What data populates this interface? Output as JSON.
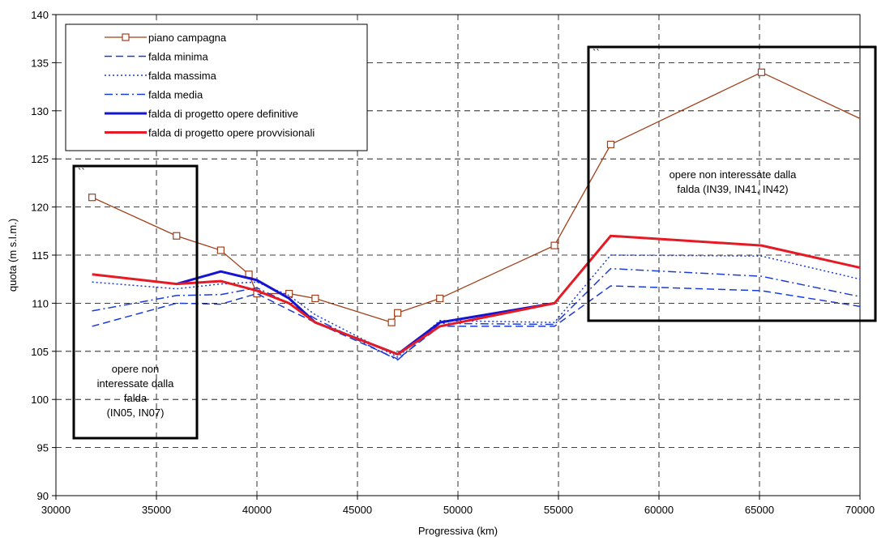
{
  "chart_data": {
    "type": "line",
    "xlabel": "Progressiva (km)",
    "ylabel": "quota (m s.l.m.)",
    "xlim": [
      30000,
      70000
    ],
    "ylim": [
      90,
      140
    ],
    "x_ticks": [
      30000,
      35000,
      40000,
      45000,
      50000,
      55000,
      60000,
      65000,
      70000
    ],
    "y_ticks": [
      90,
      95,
      100,
      105,
      110,
      115,
      120,
      125,
      130,
      135,
      140
    ],
    "grid": true,
    "legend_position": "top-left",
    "series": [
      {
        "name": "piano campagna",
        "color": "#a0401a",
        "style": "solid-square-markers",
        "x": [
          31800,
          36000,
          38200,
          39600,
          40000,
          41600,
          42900,
          46700,
          47000,
          49100,
          54800,
          57600,
          65100,
          70200
        ],
        "y": [
          121.0,
          117.0,
          115.5,
          113.0,
          111.0,
          111.0,
          110.5,
          108.0,
          109.0,
          110.5,
          116.0,
          126.5,
          134.0,
          129.0
        ]
      },
      {
        "name": "falda minima",
        "color": "#1a3cd6",
        "style": "dash",
        "x": [
          31800,
          36000,
          38200,
          40000,
          41600,
          42900,
          47000,
          49100,
          54800,
          57600,
          65100,
          70200
        ],
        "y": [
          107.6,
          110.0,
          109.9,
          111.0,
          109.3,
          108.0,
          104.2,
          107.6,
          107.6,
          111.8,
          111.3,
          109.6
        ]
      },
      {
        "name": "falda massima",
        "color": "#1a3cd6",
        "style": "dot",
        "x": [
          31800,
          36000,
          38200,
          40000,
          41600,
          42900,
          47000,
          49100,
          54800,
          57600,
          65100,
          70200
        ],
        "y": [
          112.2,
          111.5,
          112.0,
          112.2,
          110.8,
          108.8,
          104.4,
          108.2,
          108.0,
          115.0,
          114.9,
          112.4
        ]
      },
      {
        "name": "falda media",
        "color": "#1a3cd6",
        "style": "dash-dot",
        "x": [
          31800,
          36000,
          38200,
          40000,
          41600,
          42900,
          47000,
          49100,
          54800,
          57600,
          65100,
          70200
        ],
        "y": [
          109.2,
          110.8,
          110.9,
          111.6,
          110.0,
          108.4,
          104.1,
          107.9,
          107.8,
          113.6,
          112.8,
          110.6
        ]
      },
      {
        "name": "falda di progetto opere definitive",
        "color": "#1414d2",
        "style": "solid-thick",
        "x": [
          36000,
          38200,
          40000,
          41600,
          42900,
          47000,
          49100,
          54800
        ],
        "y": [
          112.0,
          113.3,
          112.4,
          110.5,
          108.0,
          104.7,
          108.0,
          110.0
        ]
      },
      {
        "name": "falda di progetto opere provvisionali",
        "color": "#e41a24",
        "style": "solid-thick",
        "x": [
          31800,
          36000,
          38200,
          40000,
          41600,
          42900,
          47000,
          49100,
          54800,
          57600,
          65100,
          70200
        ],
        "y": [
          113.0,
          112.0,
          112.3,
          111.3,
          110.0,
          108.0,
          104.7,
          107.6,
          110.0,
          117.0,
          116.0,
          113.6
        ]
      }
    ],
    "annotations": [
      {
        "lines": [
          "opere non",
          "interessate dalla",
          "falda",
          "(IN05, IN07)"
        ]
      },
      {
        "lines": [
          "opere non interessate dalla",
          "falda (IN39, IN41, IN42)"
        ]
      }
    ],
    "mark": "``"
  }
}
